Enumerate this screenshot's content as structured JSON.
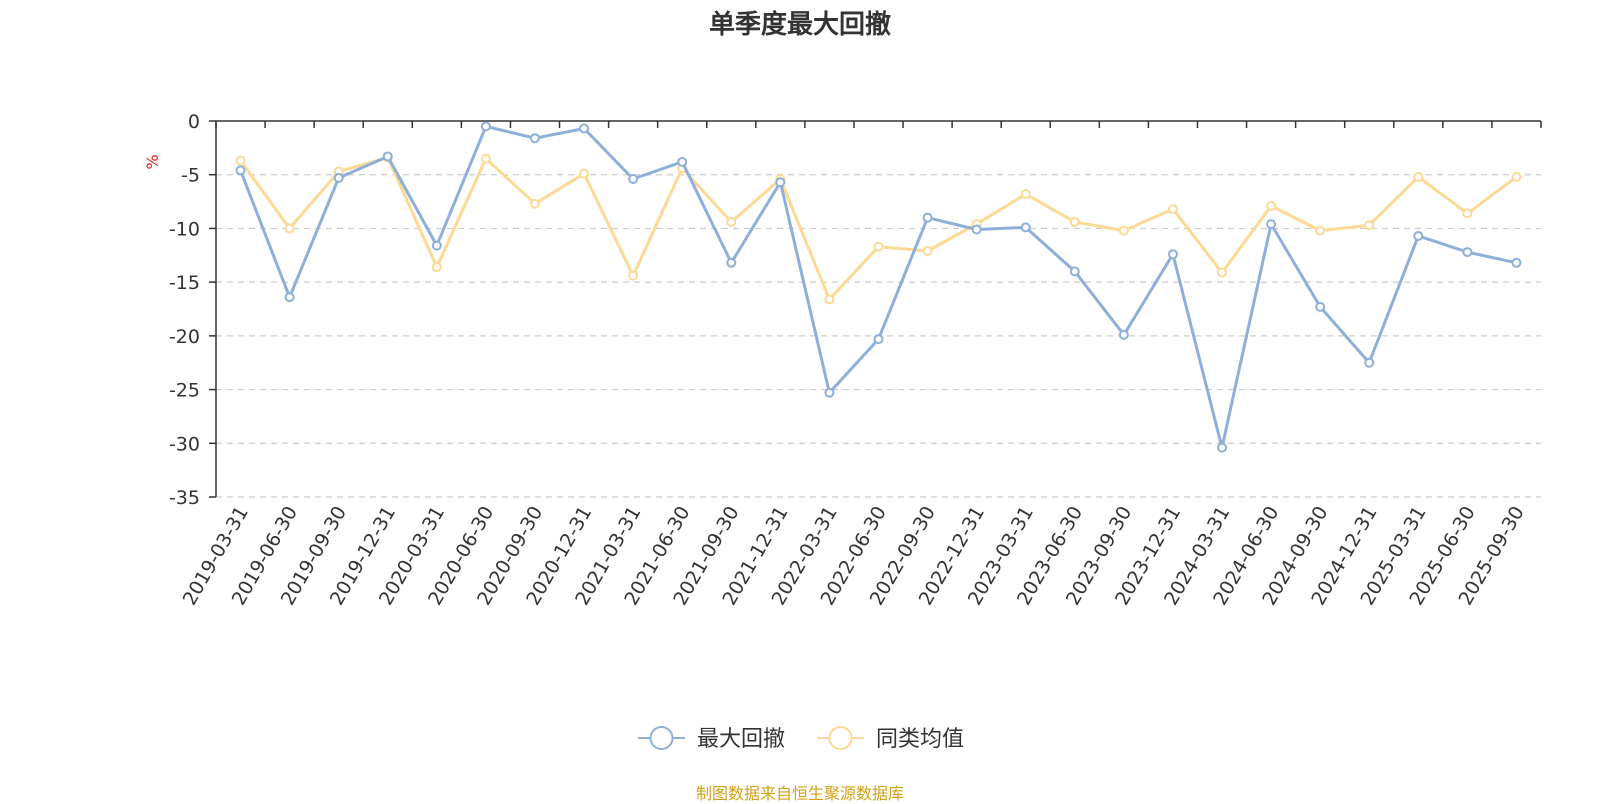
{
  "chart_data": {
    "type": "line",
    "title": "单季度最大回撤",
    "ylabel": "%",
    "xlabel": "",
    "ylim": [
      -35,
      0
    ],
    "yticks": [
      0,
      -5,
      -10,
      -15,
      -20,
      -25,
      -30,
      -35
    ],
    "ytick_labels": [
      "0",
      "-5",
      "-10",
      "-15",
      "-20",
      "-25",
      "-30",
      "-35"
    ],
    "grid": "horizontal dashed",
    "legend_position": "bottom-center",
    "categories": [
      "2019-03-31",
      "2019-06-30",
      "2019-09-30",
      "2019-12-31",
      "2020-03-31",
      "2020-06-30",
      "2020-09-30",
      "2020-12-31",
      "2021-03-31",
      "2021-06-30",
      "2021-09-30",
      "2021-12-31",
      "2022-03-31",
      "2022-06-30",
      "2022-09-30",
      "2022-12-31",
      "2023-03-31",
      "2023-06-30",
      "2023-09-30",
      "2023-12-31",
      "2024-03-31",
      "2024-06-30",
      "2024-09-30",
      "2024-12-31",
      "2025-03-31",
      "2025-06-30",
      "2025-09-30"
    ],
    "series": [
      {
        "name": "最大回撤",
        "color": "#8eafd8",
        "values": [
          -4.6,
          -16.4,
          -5.3,
          -3.3,
          -11.6,
          -0.5,
          -1.6,
          -0.7,
          -5.4,
          -3.8,
          -13.2,
          -5.7,
          -25.3,
          -20.3,
          -9.0,
          -10.1,
          -9.9,
          -14.0,
          -19.9,
          -12.4,
          -30.4,
          -9.6,
          -17.3,
          -22.5,
          -10.7,
          -12.2,
          -13.2
        ]
      },
      {
        "name": "同类均值",
        "color": "#fcd994",
        "values": [
          -3.7,
          -10.0,
          -4.7,
          -3.4,
          -13.6,
          -3.5,
          -7.7,
          -4.9,
          -14.4,
          -4.4,
          -9.4,
          -5.4,
          -16.6,
          -11.7,
          -12.1,
          -9.6,
          -6.8,
          -9.4,
          -10.2,
          -8.2,
          -14.1,
          -7.9,
          -10.2,
          -9.7,
          -5.2,
          -8.6,
          -5.2
        ]
      }
    ]
  },
  "footer": {
    "source": "制图数据来自恒生聚源数据库"
  }
}
